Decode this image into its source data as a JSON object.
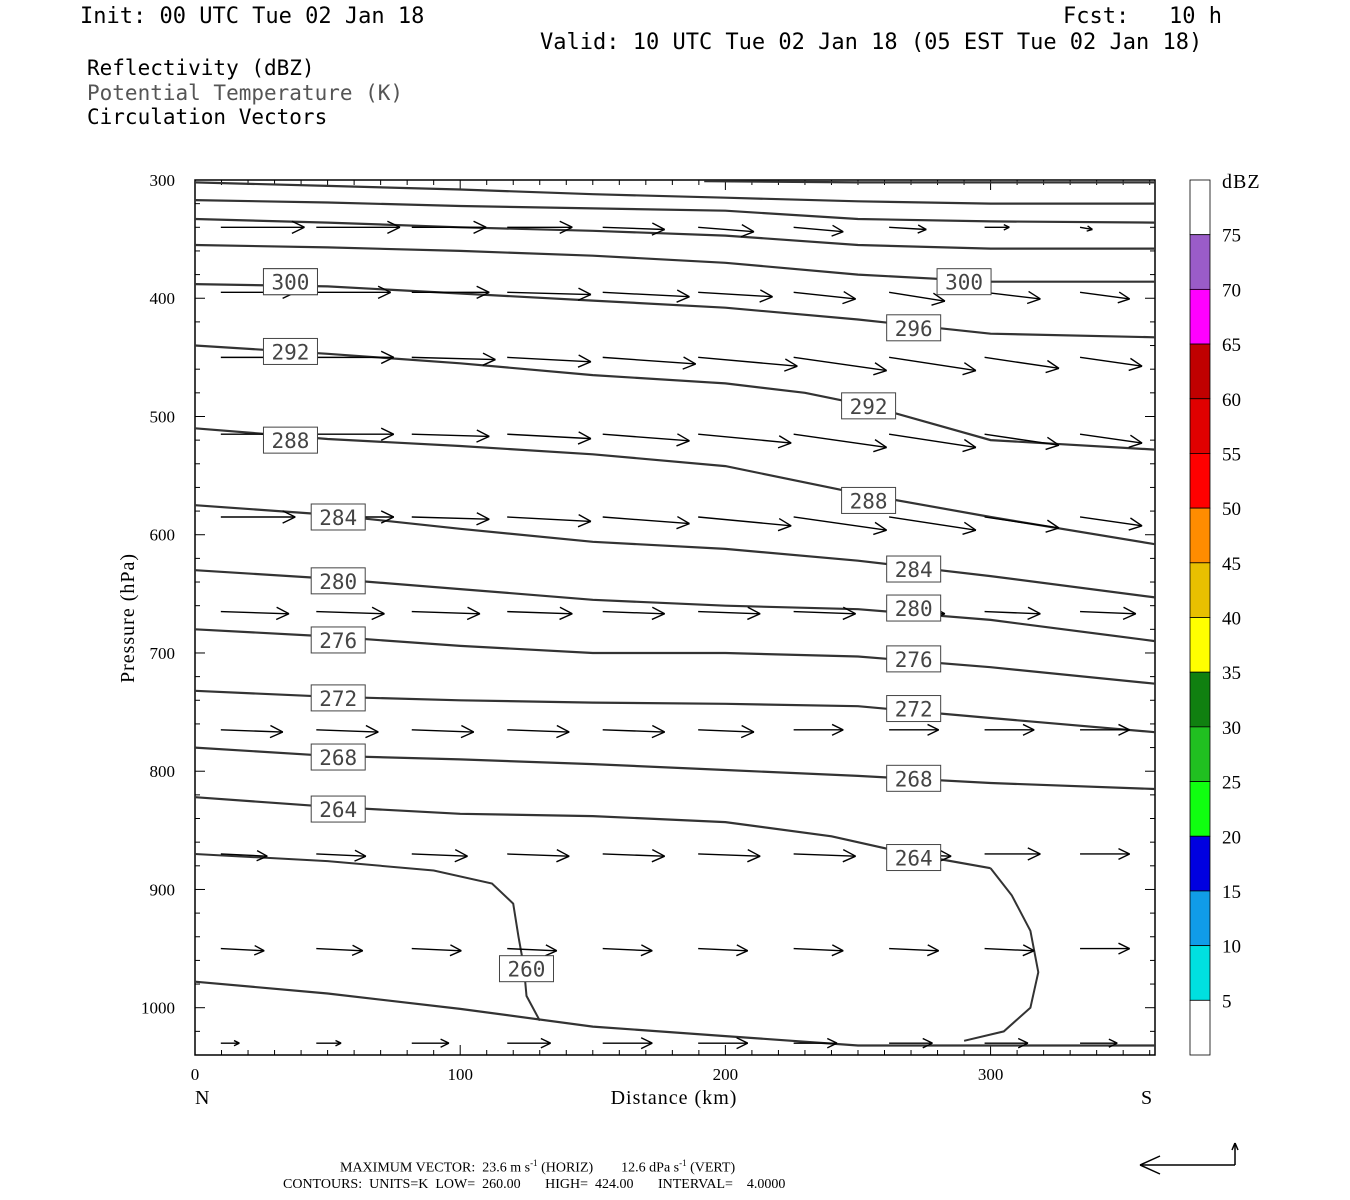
{
  "header": {
    "init": "Init: 00 UTC Tue 02 Jan 18",
    "fcst": "Fcst:   10 h",
    "valid": "Valid: 10 UTC Tue 02 Jan 18 (05 EST Tue 02 Jan 18)"
  },
  "legend": {
    "line1": "Reflectivity (dBZ)",
    "line2": "Potential Temperature (K)",
    "line3": "Circulation Vectors"
  },
  "footer": {
    "line1": "MAXIMUM VECTOR:  23.6 m s",
    "line1_sup1": "-1",
    "line1_mid": " (HORIZ)        12.6 dPa s",
    "line1_sup2": "-1",
    "line1_end": " (VERT)",
    "line2": "CONTOURS:  UNITS=K  LOW=  260.00       HIGH=  424.00       INTERVAL=    4.0000"
  },
  "chart_data": {
    "type": "cross-section",
    "xlabel": "Distance (km)",
    "ylabel": "Pressure (hPa)",
    "xlim": [
      0,
      362
    ],
    "ylim": [
      1040,
      300
    ],
    "x_ticks": [
      0,
      100,
      200,
      300
    ],
    "y_ticks": [
      300,
      400,
      500,
      600,
      700,
      800,
      900,
      1000
    ],
    "x_end_labels": {
      "left": "N",
      "right": "S"
    },
    "colorbar": {
      "title": "dBZ",
      "labels": [
        "75",
        "70",
        "65",
        "60",
        "55",
        "50",
        "45",
        "40",
        "35",
        "30",
        "25",
        "20",
        "15",
        "10",
        "5"
      ],
      "colors": [
        "#ffffff",
        "#9a5cc8",
        "#ff00ff",
        "#c00000",
        "#e00000",
        "#ff0000",
        "#ff8c00",
        "#e8c000",
        "#ffff00",
        "#108010",
        "#20c020",
        "#10ff10",
        "#0000e0",
        "#109ce8",
        "#00e0e0",
        "#ffffff"
      ]
    },
    "contour_units": "K",
    "contour_low": 260.0,
    "contour_high": 424.0,
    "contour_interval": 4.0,
    "isentropes": [
      {
        "theta": 264,
        "labels": [
          [
            54,
            832
          ],
          [
            271,
            873
          ]
        ],
        "points": [
          [
            0,
            822
          ],
          [
            50,
            830
          ],
          [
            100,
            836
          ],
          [
            150,
            838
          ],
          [
            200,
            843
          ],
          [
            240,
            855
          ],
          [
            270,
            870
          ],
          [
            300,
            882
          ]
        ]
      },
      {
        "theta": 268,
        "labels": [
          [
            54,
            788
          ],
          [
            271,
            806
          ]
        ],
        "points": [
          [
            0,
            780
          ],
          [
            50,
            787
          ],
          [
            100,
            790
          ],
          [
            150,
            794
          ],
          [
            200,
            799
          ],
          [
            250,
            804
          ],
          [
            300,
            810
          ],
          [
            362,
            815
          ]
        ]
      },
      {
        "theta": 272,
        "labels": [
          [
            54,
            738
          ],
          [
            271,
            747
          ]
        ],
        "points": [
          [
            0,
            732
          ],
          [
            50,
            737
          ],
          [
            100,
            740
          ],
          [
            150,
            742
          ],
          [
            200,
            743
          ],
          [
            250,
            745
          ],
          [
            300,
            755
          ],
          [
            362,
            767
          ]
        ]
      },
      {
        "theta": 276,
        "labels": [
          [
            54,
            689
          ],
          [
            271,
            705
          ]
        ],
        "points": [
          [
            0,
            680
          ],
          [
            50,
            686
          ],
          [
            100,
            694
          ],
          [
            150,
            700
          ],
          [
            200,
            700
          ],
          [
            250,
            703
          ],
          [
            300,
            712
          ],
          [
            362,
            726
          ]
        ]
      },
      {
        "theta": 280,
        "labels": [
          [
            54,
            639
          ],
          [
            271,
            662
          ]
        ],
        "points": [
          [
            0,
            630
          ],
          [
            50,
            637
          ],
          [
            100,
            646
          ],
          [
            150,
            655
          ],
          [
            200,
            660
          ],
          [
            250,
            663
          ],
          [
            300,
            672
          ],
          [
            362,
            690
          ]
        ]
      },
      {
        "theta": 284,
        "labels": [
          [
            54,
            585
          ],
          [
            271,
            629
          ]
        ],
        "points": [
          [
            0,
            575
          ],
          [
            50,
            583
          ],
          [
            100,
            595
          ],
          [
            150,
            606
          ],
          [
            200,
            612
          ],
          [
            250,
            622
          ],
          [
            300,
            635
          ],
          [
            362,
            653
          ]
        ]
      },
      {
        "theta": 288,
        "labels": [
          [
            36,
            520
          ],
          [
            254,
            571
          ]
        ],
        "points": [
          [
            0,
            510
          ],
          [
            50,
            519
          ],
          [
            100,
            525
          ],
          [
            150,
            532
          ],
          [
            200,
            542
          ],
          [
            250,
            565
          ],
          [
            300,
            585
          ],
          [
            362,
            608
          ]
        ]
      },
      {
        "theta": 292,
        "labels": [
          [
            36,
            445
          ],
          [
            254,
            491
          ]
        ],
        "points": [
          [
            0,
            440
          ],
          [
            50,
            447
          ],
          [
            100,
            455
          ],
          [
            150,
            465
          ],
          [
            200,
            472
          ],
          [
            230,
            480
          ],
          [
            254,
            491
          ],
          [
            300,
            520
          ],
          [
            362,
            528
          ]
        ]
      },
      {
        "theta": 296,
        "labels": [
          [
            36,
            386
          ],
          [
            271,
            425
          ]
        ],
        "points": [
          [
            0,
            388
          ],
          [
            50,
            390
          ],
          [
            100,
            396
          ],
          [
            150,
            402
          ],
          [
            200,
            408
          ],
          [
            250,
            418
          ],
          [
            300,
            430
          ],
          [
            362,
            433
          ]
        ]
      },
      {
        "theta": 300,
        "labels": [
          [
            36,
            386
          ],
          [
            290,
            386
          ]
        ],
        "points": [
          [
            0,
            355
          ],
          [
            50,
            357
          ],
          [
            100,
            360
          ],
          [
            150,
            364
          ],
          [
            200,
            370
          ],
          [
            250,
            380
          ],
          [
            300,
            386
          ],
          [
            362,
            386
          ]
        ]
      },
      {
        "theta": 304,
        "labels": [],
        "points": [
          [
            0,
            333
          ],
          [
            50,
            336
          ],
          [
            100,
            340
          ],
          [
            150,
            343
          ],
          [
            200,
            347
          ],
          [
            250,
            355
          ],
          [
            300,
            358
          ],
          [
            362,
            358
          ]
        ]
      },
      {
        "theta": 308,
        "labels": [],
        "points": [
          [
            0,
            317
          ],
          [
            50,
            319
          ],
          [
            100,
            322
          ],
          [
            150,
            324
          ],
          [
            200,
            326
          ],
          [
            250,
            333
          ],
          [
            300,
            335
          ],
          [
            362,
            336
          ]
        ]
      },
      {
        "theta": 312,
        "labels": [],
        "points": [
          [
            0,
            302
          ],
          [
            50,
            305
          ],
          [
            100,
            308
          ],
          [
            150,
            312
          ],
          [
            200,
            315
          ],
          [
            250,
            318
          ],
          [
            300,
            320
          ],
          [
            362,
            320
          ]
        ]
      },
      {
        "theta": 316,
        "labels": [],
        "points": [
          [
            192,
            301
          ],
          [
            250,
            302
          ],
          [
            300,
            302
          ],
          [
            362,
            302
          ]
        ]
      }
    ],
    "closed_260": {
      "theta": 260,
      "label": [
        125,
        967
      ],
      "left_lobe": [
        [
          0,
          870
        ],
        [
          50,
          876
        ],
        [
          90,
          884
        ],
        [
          112,
          895
        ],
        [
          120,
          912
        ],
        [
          122,
          940
        ],
        [
          124,
          965
        ],
        [
          125,
          990
        ],
        [
          130,
          1011
        ]
      ],
      "right_lobe": [
        [
          290,
          1028
        ],
        [
          305,
          1020
        ],
        [
          315,
          1000
        ],
        [
          318,
          970
        ],
        [
          315,
          935
        ],
        [
          308,
          905
        ],
        [
          300,
          882
        ]
      ]
    },
    "bottom_isentrope": [
      [
        0,
        978
      ],
      [
        50,
        988
      ],
      [
        100,
        1001
      ],
      [
        150,
        1016
      ],
      [
        200,
        1024
      ],
      [
        250,
        1032
      ],
      [
        300,
        1032
      ],
      [
        362,
        1032
      ]
    ],
    "vectors_rows": [
      {
        "p": 340,
        "u": [
          27,
          27,
          24,
          21,
          20,
          18,
          16,
          12,
          8,
          4
        ],
        "w": [
          0,
          0,
          0,
          0,
          1,
          2,
          2,
          1,
          0,
          1
        ]
      },
      {
        "p": 395,
        "u": [
          24,
          24,
          25,
          27,
          28,
          24,
          20,
          18,
          18,
          16
        ],
        "w": [
          0,
          0,
          0,
          1,
          2,
          2,
          3,
          4,
          3,
          3
        ]
      },
      {
        "p": 450,
        "u": [
          24,
          25,
          27,
          27,
          30,
          32,
          30,
          28,
          24,
          20
        ],
        "w": [
          0,
          0,
          1,
          2,
          3,
          4,
          6,
          6,
          5,
          4
        ]
      },
      {
        "p": 515,
        "u": [
          24,
          25,
          25,
          27,
          28,
          30,
          30,
          28,
          24,
          20
        ],
        "w": [
          0,
          0,
          1,
          2,
          3,
          4,
          6,
          6,
          5,
          4
        ]
      },
      {
        "p": 585,
        "u": [
          24,
          25,
          25,
          27,
          28,
          30,
          30,
          28,
          24,
          20
        ],
        "w": [
          0,
          0,
          1,
          2,
          3,
          4,
          6,
          6,
          5,
          4
        ]
      },
      {
        "p": 665,
        "u": [
          22,
          22,
          22,
          21,
          20,
          20,
          20,
          18,
          18,
          18
        ],
        "w": [
          1,
          1,
          1,
          1,
          1,
          1,
          1,
          1,
          1,
          1
        ]
      },
      {
        "p": 765,
        "u": [
          20,
          20,
          20,
          20,
          20,
          18,
          16,
          16,
          16,
          16
        ],
        "w": [
          1,
          1,
          1,
          1,
          1,
          1,
          0,
          0,
          0,
          0
        ]
      },
      {
        "p": 870,
        "u": [
          15,
          16,
          18,
          20,
          20,
          20,
          20,
          20,
          18,
          16
        ],
        "w": [
          1,
          1,
          1,
          1,
          1,
          1,
          1,
          1,
          0,
          0
        ]
      },
      {
        "p": 950,
        "u": [
          14,
          15,
          16,
          16,
          16,
          16,
          16,
          16,
          16,
          16
        ],
        "w": [
          1,
          1,
          1,
          1,
          1,
          1,
          1,
          1,
          1,
          0
        ]
      },
      {
        "p": 1030,
        "u": [
          6,
          8,
          12,
          14,
          16,
          16,
          14,
          14,
          14,
          12
        ],
        "w": [
          0,
          0,
          0,
          0,
          0,
          0,
          0,
          0,
          0,
          0
        ]
      }
    ]
  }
}
